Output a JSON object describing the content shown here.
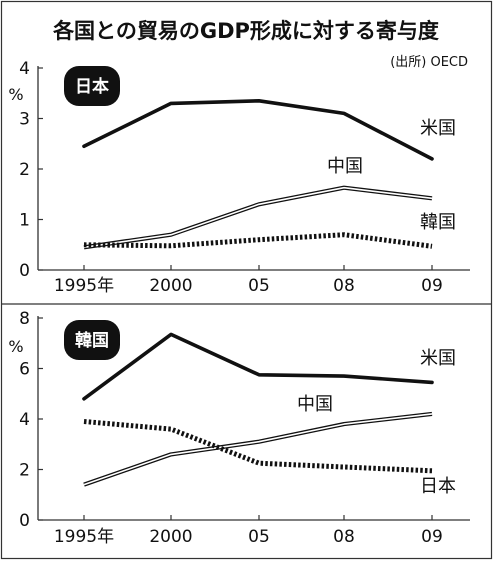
{
  "title": "各国との貿易のGDP形成に対する寄与度",
  "source": "(出所) OECD",
  "colors": {
    "line": "#111111",
    "badge_bg": "#111111",
    "badge_text": "#ffffff",
    "frame": "#333333"
  },
  "chart_data": [
    {
      "type": "line",
      "title": "日本",
      "ylabel": "%",
      "x": [
        "1995年",
        "2000",
        "05",
        "08",
        "09"
      ],
      "ylim": [
        0,
        4
      ],
      "yticks": [
        "0",
        "1",
        "2",
        "3",
        "4"
      ],
      "series": [
        {
          "name": "米国",
          "style": "solid",
          "values": [
            2.45,
            3.3,
            3.35,
            3.1,
            2.2
          ]
        },
        {
          "name": "中国",
          "style": "double",
          "values": [
            0.45,
            0.7,
            1.3,
            1.63,
            1.42
          ]
        },
        {
          "name": "韓国",
          "style": "dotted",
          "values": [
            0.5,
            0.48,
            0.6,
            0.7,
            0.47
          ]
        }
      ]
    },
    {
      "type": "line",
      "title": "韓国",
      "ylabel": "%",
      "x": [
        "1995年",
        "2000",
        "05",
        "08",
        "09"
      ],
      "ylim": [
        0,
        8
      ],
      "yticks": [
        "0",
        "2",
        "4",
        "6",
        "8"
      ],
      "series": [
        {
          "name": "米国",
          "style": "solid",
          "values": [
            4.8,
            7.35,
            5.75,
            5.7,
            5.45
          ]
        },
        {
          "name": "中国",
          "style": "double",
          "values": [
            1.4,
            2.6,
            3.1,
            3.8,
            4.2
          ]
        },
        {
          "name": "日本",
          "style": "dotted",
          "values": [
            3.9,
            3.6,
            2.25,
            2.1,
            1.95
          ]
        }
      ]
    }
  ]
}
